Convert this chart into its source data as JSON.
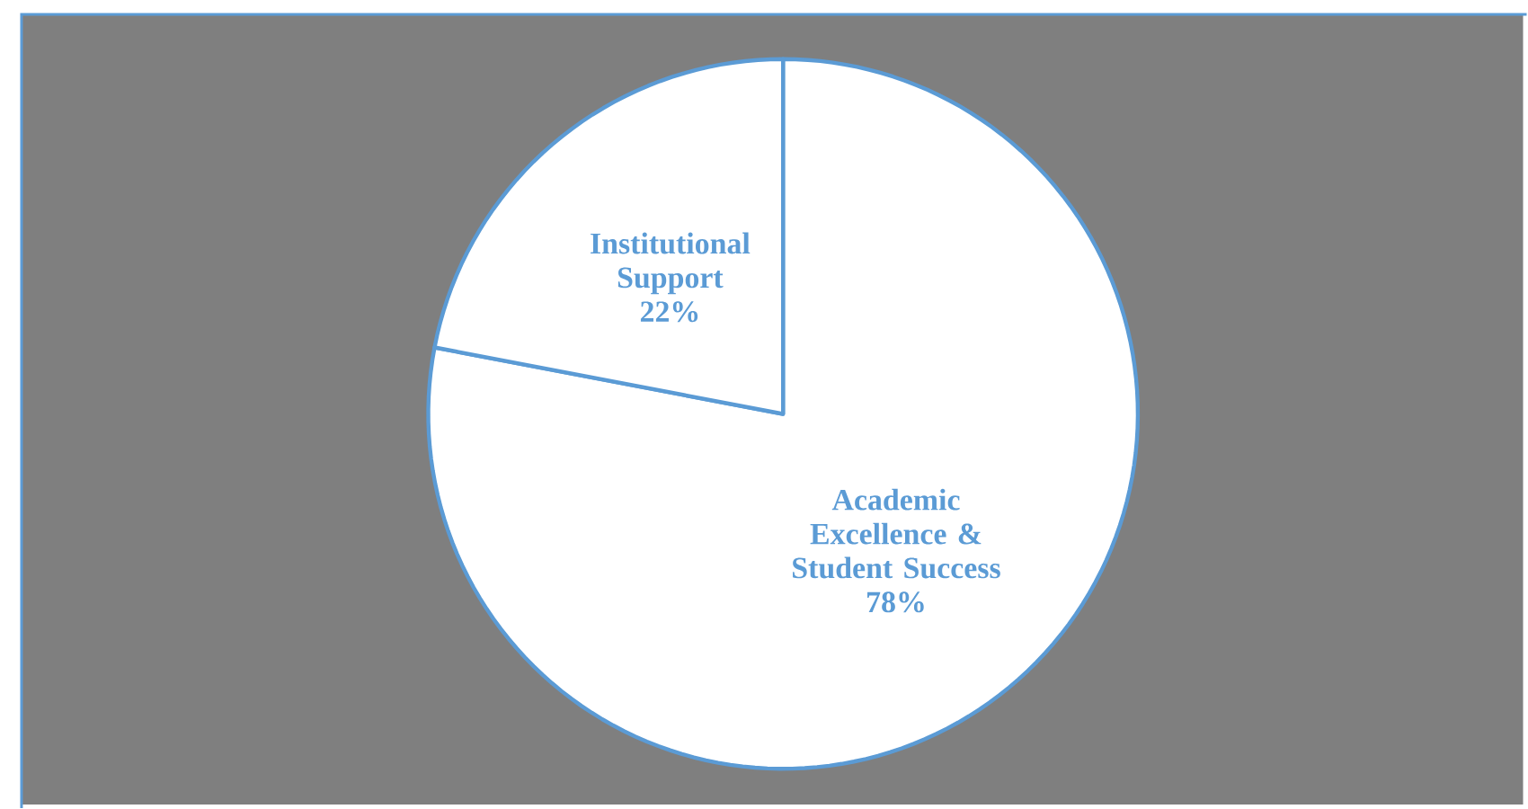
{
  "chart_data": {
    "type": "pie",
    "categories": [
      "Academic Excellence & Student Success",
      "Institutional Support"
    ],
    "values": [
      78,
      22
    ],
    "value_labels": [
      "78%",
      "22%"
    ],
    "colors": [
      "#ffffff",
      "#ffffff"
    ]
  }
}
